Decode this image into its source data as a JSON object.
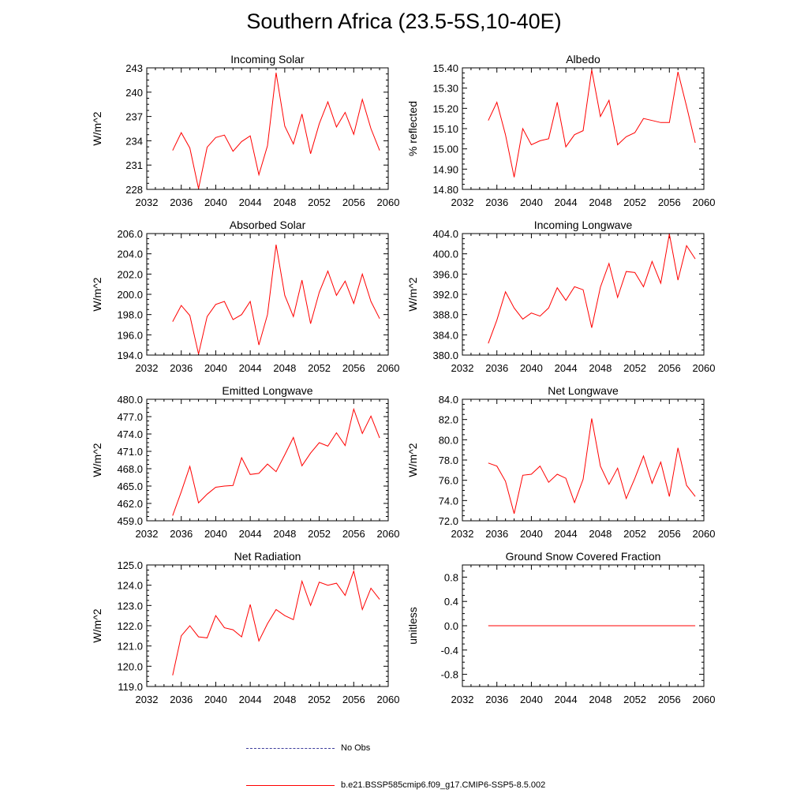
{
  "title": "Southern Africa (23.5-5S,10-40E)",
  "legend": [
    {
      "label": "No Obs",
      "color": "#3c3c9c",
      "dashed": true
    },
    {
      "label": "b.e21.BSSP585cmip6.f09_g17.CMIP6-SSP5-8.5.002",
      "color": "#ff0000",
      "dashed": false
    }
  ],
  "chart_data": [
    {
      "type": "line",
      "title": "Incoming Solar",
      "ylabel": "W/m^2",
      "xlabel": "",
      "xlim": [
        2032,
        2060
      ],
      "ylim": [
        228,
        243
      ],
      "xticks": [
        2032,
        2036,
        2040,
        2044,
        2048,
        2052,
        2056,
        2060
      ],
      "xtick_labels": [
        "2032",
        "2036",
        "2040",
        "2044",
        "2048",
        "2052",
        "2056",
        "2060"
      ],
      "yticks": [
        228,
        231,
        234,
        237,
        240,
        243
      ],
      "ytick_labels": [
        "228",
        "231",
        "234",
        "237",
        "240",
        "243"
      ],
      "color": "#ff0000",
      "x": [
        2035,
        2036,
        2037,
        2038,
        2039,
        2040,
        2041,
        2042,
        2043,
        2044,
        2045,
        2046,
        2047,
        2048,
        2049,
        2050,
        2051,
        2052,
        2053,
        2054,
        2055,
        2056,
        2057,
        2058,
        2059
      ],
      "y": [
        232.8,
        235.0,
        233.1,
        228.1,
        233.2,
        234.4,
        234.7,
        232.7,
        233.9,
        234.6,
        229.8,
        233.4,
        242.4,
        235.8,
        233.6,
        237.3,
        232.4,
        236.1,
        238.8,
        235.7,
        237.5,
        234.8,
        239.1,
        235.5,
        232.8
      ]
    },
    {
      "type": "line",
      "title": "Albedo",
      "ylabel": "% reflected",
      "xlabel": "",
      "xlim": [
        2032,
        2060
      ],
      "ylim": [
        14.8,
        15.4
      ],
      "xticks": [
        2032,
        2036,
        2040,
        2044,
        2048,
        2052,
        2056,
        2060
      ],
      "xtick_labels": [
        "2032",
        "2036",
        "2040",
        "2044",
        "2048",
        "2052",
        "2056",
        "2060"
      ],
      "yticks": [
        14.8,
        14.9,
        15.0,
        15.1,
        15.2,
        15.3,
        15.4
      ],
      "ytick_labels": [
        "14.80",
        "14.90",
        "15.00",
        "15.10",
        "15.20",
        "15.30",
        "15.40"
      ],
      "color": "#ff0000",
      "x": [
        2035,
        2036,
        2037,
        2038,
        2039,
        2040,
        2041,
        2042,
        2043,
        2044,
        2045,
        2046,
        2047,
        2048,
        2049,
        2050,
        2051,
        2052,
        2053,
        2054,
        2055,
        2056,
        2057,
        2058,
        2059
      ],
      "y": [
        15.14,
        15.23,
        15.07,
        14.86,
        15.1,
        15.02,
        15.04,
        15.05,
        15.23,
        15.01,
        15.07,
        15.09,
        15.39,
        15.16,
        15.24,
        15.02,
        15.06,
        15.08,
        15.15,
        15.14,
        15.13,
        15.13,
        15.38,
        15.21,
        15.03
      ]
    },
    {
      "type": "line",
      "title": "Absorbed Solar",
      "ylabel": "W/m^2",
      "xlabel": "",
      "xlim": [
        2032,
        2060
      ],
      "ylim": [
        194,
        206
      ],
      "xticks": [
        2032,
        2036,
        2040,
        2044,
        2048,
        2052,
        2056,
        2060
      ],
      "xtick_labels": [
        "2032",
        "2036",
        "2040",
        "2044",
        "2048",
        "2052",
        "2056",
        "2060"
      ],
      "yticks": [
        194,
        196,
        198,
        200,
        202,
        204,
        206
      ],
      "ytick_labels": [
        "194.0",
        "196.0",
        "198.0",
        "200.0",
        "202.0",
        "204.0",
        "206.0"
      ],
      "color": "#ff0000",
      "x": [
        2035,
        2036,
        2037,
        2038,
        2039,
        2040,
        2041,
        2042,
        2043,
        2044,
        2045,
        2046,
        2047,
        2048,
        2049,
        2050,
        2051,
        2052,
        2053,
        2054,
        2055,
        2056,
        2057,
        2058,
        2059
      ],
      "y": [
        197.3,
        198.9,
        197.9,
        194.1,
        197.8,
        199.0,
        199.3,
        197.5,
        198.0,
        199.3,
        195.0,
        198.0,
        204.9,
        199.9,
        197.8,
        201.4,
        197.1,
        200.2,
        202.3,
        199.9,
        201.3,
        199.1,
        202.0,
        199.3,
        197.6
      ]
    },
    {
      "type": "line",
      "title": "Incoming Longwave",
      "ylabel": "W/m^2",
      "xlabel": "",
      "xlim": [
        2032,
        2060
      ],
      "ylim": [
        380,
        404
      ],
      "xticks": [
        2032,
        2036,
        2040,
        2044,
        2048,
        2052,
        2056,
        2060
      ],
      "xtick_labels": [
        "2032",
        "2036",
        "2040",
        "2044",
        "2048",
        "2052",
        "2056",
        "2060"
      ],
      "yticks": [
        380,
        384,
        388,
        392,
        396,
        400,
        404
      ],
      "ytick_labels": [
        "380.0",
        "384.0",
        "388.0",
        "392.0",
        "396.0",
        "400.0",
        "404.0"
      ],
      "color": "#ff0000",
      "x": [
        2035,
        2036,
        2037,
        2038,
        2039,
        2040,
        2041,
        2042,
        2043,
        2044,
        2045,
        2046,
        2047,
        2048,
        2049,
        2050,
        2051,
        2052,
        2053,
        2054,
        2055,
        2056,
        2057,
        2058,
        2059
      ],
      "y": [
        382.3,
        386.9,
        392.5,
        389.3,
        387.1,
        388.3,
        387.7,
        389.3,
        393.3,
        390.8,
        393.5,
        392.9,
        385.4,
        393.4,
        398.1,
        391.4,
        396.5,
        396.3,
        393.5,
        398.5,
        394.2,
        403.9,
        394.8,
        401.6,
        399.0
      ]
    },
    {
      "type": "line",
      "title": "Emitted Longwave",
      "ylabel": "W/m^2",
      "xlabel": "",
      "xlim": [
        2032,
        2060
      ],
      "ylim": [
        459,
        480
      ],
      "xticks": [
        2032,
        2036,
        2040,
        2044,
        2048,
        2052,
        2056,
        2060
      ],
      "xtick_labels": [
        "2032",
        "2036",
        "2040",
        "2044",
        "2048",
        "2052",
        "2056",
        "2060"
      ],
      "yticks": [
        459,
        462,
        465,
        468,
        471,
        474,
        477,
        480
      ],
      "ytick_labels": [
        "459.0",
        "462.0",
        "465.0",
        "468.0",
        "471.0",
        "474.0",
        "477.0",
        "480.0"
      ],
      "color": "#ff0000",
      "x": [
        2035,
        2036,
        2037,
        2038,
        2039,
        2040,
        2041,
        2042,
        2043,
        2044,
        2045,
        2046,
        2047,
        2048,
        2049,
        2050,
        2051,
        2052,
        2053,
        2054,
        2055,
        2056,
        2057,
        2058,
        2059
      ],
      "y": [
        459.9,
        464.0,
        468.4,
        462.1,
        463.6,
        464.8,
        465.0,
        465.1,
        469.9,
        467.0,
        467.2,
        468.8,
        467.5,
        470.4,
        473.4,
        468.5,
        470.7,
        472.5,
        471.9,
        474.2,
        472.0,
        478.3,
        474.1,
        477.1,
        473.3
      ]
    },
    {
      "type": "line",
      "title": "Net Longwave",
      "ylabel": "W/m^2",
      "xlabel": "",
      "xlim": [
        2032,
        2060
      ],
      "ylim": [
        72,
        84
      ],
      "xticks": [
        2032,
        2036,
        2040,
        2044,
        2048,
        2052,
        2056,
        2060
      ],
      "xtick_labels": [
        "2032",
        "2036",
        "2040",
        "2044",
        "2048",
        "2052",
        "2056",
        "2060"
      ],
      "yticks": [
        72,
        74,
        76,
        78,
        80,
        82,
        84
      ],
      "ytick_labels": [
        "72.0",
        "74.0",
        "76.0",
        "78.0",
        "80.0",
        "82.0",
        "84.0"
      ],
      "color": "#ff0000",
      "x": [
        2035,
        2036,
        2037,
        2038,
        2039,
        2040,
        2041,
        2042,
        2043,
        2044,
        2045,
        2046,
        2047,
        2048,
        2049,
        2050,
        2051,
        2052,
        2053,
        2054,
        2055,
        2056,
        2057,
        2058,
        2059
      ],
      "y": [
        77.7,
        77.4,
        75.9,
        72.7,
        76.5,
        76.6,
        77.4,
        75.8,
        76.6,
        76.2,
        73.8,
        76.1,
        82.1,
        77.4,
        75.6,
        77.2,
        74.2,
        76.2,
        78.4,
        75.7,
        77.8,
        74.4,
        79.2,
        75.5,
        74.4
      ]
    },
    {
      "type": "line",
      "title": "Net Radiation",
      "ylabel": "W/m^2",
      "xlabel": "",
      "xlim": [
        2032,
        2060
      ],
      "ylim": [
        119,
        125
      ],
      "xticks": [
        2032,
        2036,
        2040,
        2044,
        2048,
        2052,
        2056,
        2060
      ],
      "xtick_labels": [
        "2032",
        "2036",
        "2040",
        "2044",
        "2048",
        "2052",
        "2056",
        "2060"
      ],
      "yticks": [
        119,
        120,
        121,
        122,
        123,
        124,
        125
      ],
      "ytick_labels": [
        "119.0",
        "120.0",
        "121.0",
        "122.0",
        "123.0",
        "124.0",
        "125.0"
      ],
      "color": "#ff0000",
      "x": [
        2035,
        2036,
        2037,
        2038,
        2039,
        2040,
        2041,
        2042,
        2043,
        2044,
        2045,
        2046,
        2047,
        2048,
        2049,
        2050,
        2051,
        2052,
        2053,
        2054,
        2055,
        2056,
        2057,
        2058,
        2059
      ],
      "y": [
        119.55,
        121.5,
        122.0,
        121.45,
        121.4,
        122.5,
        121.9,
        121.8,
        121.45,
        123.05,
        121.25,
        122.1,
        122.8,
        122.5,
        122.3,
        124.2,
        123.0,
        124.15,
        124.0,
        124.1,
        123.5,
        124.7,
        122.8,
        123.85,
        123.3
      ]
    },
    {
      "type": "line",
      "title": "Ground Snow Covered Fraction",
      "ylabel": "unitless",
      "xlabel": "",
      "xlim": [
        2032,
        2060
      ],
      "ylim": [
        -1.0,
        1.0
      ],
      "xticks": [
        2032,
        2036,
        2040,
        2044,
        2048,
        2052,
        2056,
        2060
      ],
      "xtick_labels": [
        "2032",
        "2036",
        "2040",
        "2044",
        "2048",
        "2052",
        "2056",
        "2060"
      ],
      "yticks": [
        -0.8,
        -0.4,
        0.0,
        0.4,
        0.8
      ],
      "ytick_labels": [
        "-0.8",
        "-0.4",
        "0.0",
        "0.4",
        "0.8"
      ],
      "color": "#ff0000",
      "x": [
        2035,
        2036,
        2037,
        2038,
        2039,
        2040,
        2041,
        2042,
        2043,
        2044,
        2045,
        2046,
        2047,
        2048,
        2049,
        2050,
        2051,
        2052,
        2053,
        2054,
        2055,
        2056,
        2057,
        2058,
        2059
      ],
      "y": [
        0,
        0,
        0,
        0,
        0,
        0,
        0,
        0,
        0,
        0,
        0,
        0,
        0,
        0,
        0,
        0,
        0,
        0,
        0,
        0,
        0,
        0,
        0,
        0,
        0
      ]
    }
  ]
}
